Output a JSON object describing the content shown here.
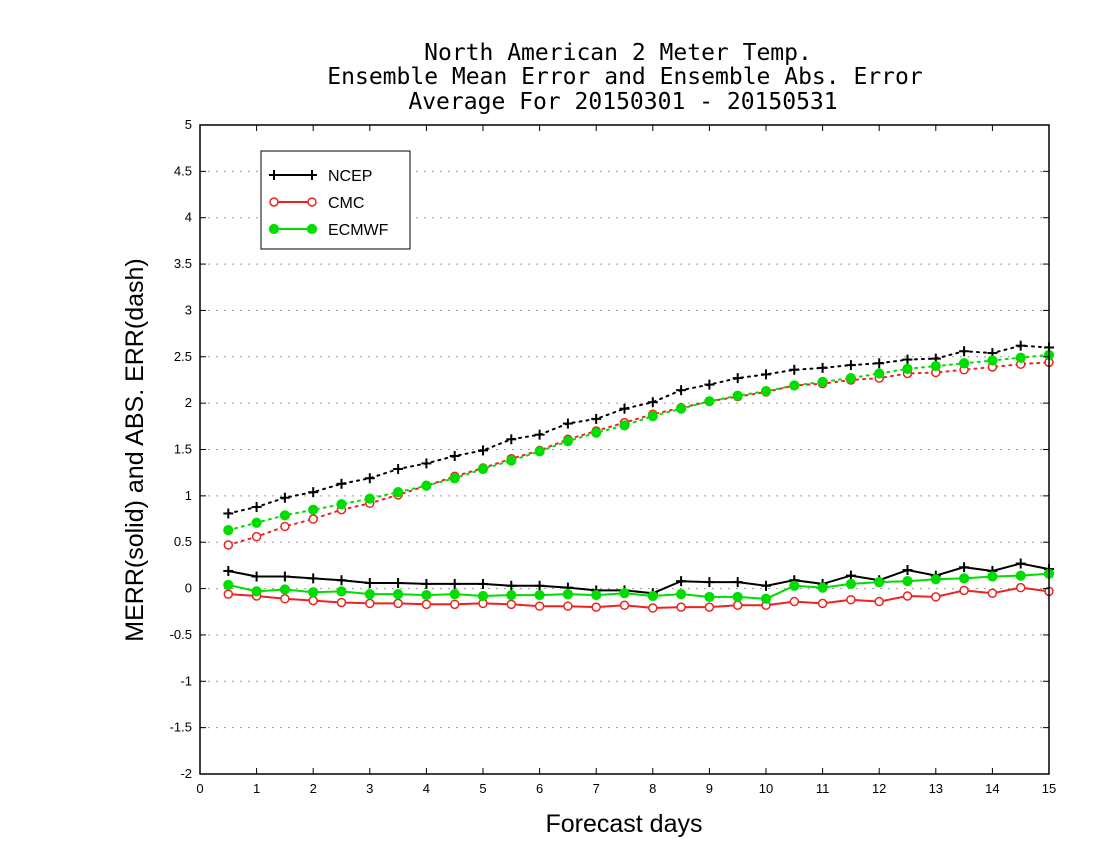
{
  "chart_data": {
    "type": "line",
    "title_lines": [
      "North American 2 Meter Temp.",
      "Ensemble Mean Error and Ensemble Abs. Error",
      "Average For 20150301 - 20150531"
    ],
    "xlabel": "Forecast days",
    "ylabel": "MERR(solid) and ABS. ERR(dash)",
    "xlim": [
      0,
      15
    ],
    "ylim": [
      -2,
      5
    ],
    "x_ticks": [
      "0",
      "1",
      "2",
      "3",
      "4",
      "5",
      "6",
      "7",
      "8",
      "9",
      "10",
      "11",
      "12",
      "13",
      "14",
      "15"
    ],
    "y_ticks": [
      "-2",
      "-1.5",
      "-1",
      "-0.5",
      "0",
      "0.5",
      "1",
      "1.5",
      "2",
      "2.5",
      "3",
      "3.5",
      "4",
      "4.5",
      "5"
    ],
    "grid": "horizontal dotted",
    "legend_position": "top-left",
    "x": [
      0.5,
      1,
      1.5,
      2,
      2.5,
      3,
      3.5,
      4,
      4.5,
      5,
      5.5,
      6,
      6.5,
      7,
      7.5,
      8,
      8.5,
      9,
      9.5,
      10,
      10.5,
      11,
      11.5,
      12,
      12.5,
      13,
      13.5,
      14,
      14.5,
      15
    ],
    "series": [
      {
        "name": "NCEP",
        "color": "#000000",
        "marker": "plus",
        "merr": [
          0.19,
          0.13,
          0.13,
          0.11,
          0.09,
          0.06,
          0.06,
          0.05,
          0.05,
          0.05,
          0.03,
          0.03,
          0.01,
          -0.02,
          -0.02,
          -0.05,
          0.08,
          0.07,
          0.07,
          0.03,
          0.09,
          0.05,
          0.14,
          0.09,
          0.2,
          0.14,
          0.23,
          0.19,
          0.27,
          0.21
        ],
        "abs_err": [
          0.81,
          0.88,
          0.98,
          1.04,
          1.13,
          1.19,
          1.29,
          1.35,
          1.43,
          1.49,
          1.61,
          1.66,
          1.78,
          1.83,
          1.94,
          2.01,
          2.14,
          2.2,
          2.27,
          2.31,
          2.36,
          2.38,
          2.41,
          2.43,
          2.47,
          2.48,
          2.56,
          2.54,
          2.62,
          2.6
        ]
      },
      {
        "name": "CMC",
        "color": "#ee2222",
        "marker": "open-circle",
        "merr": [
          -0.06,
          -0.08,
          -0.11,
          -0.13,
          -0.15,
          -0.16,
          -0.16,
          -0.17,
          -0.17,
          -0.16,
          -0.17,
          -0.19,
          -0.19,
          -0.2,
          -0.18,
          -0.21,
          -0.2,
          -0.2,
          -0.18,
          -0.18,
          -0.14,
          -0.16,
          -0.12,
          -0.14,
          -0.08,
          -0.09,
          -0.02,
          -0.05,
          0.01,
          -0.03
        ],
        "abs_err": [
          0.47,
          0.56,
          0.67,
          0.75,
          0.85,
          0.92,
          1.01,
          1.11,
          1.21,
          1.3,
          1.4,
          1.49,
          1.61,
          1.7,
          1.79,
          1.88,
          1.95,
          2.02,
          2.07,
          2.12,
          2.19,
          2.21,
          2.25,
          2.27,
          2.32,
          2.33,
          2.36,
          2.39,
          2.42,
          2.44
        ]
      },
      {
        "name": "ECMWF",
        "color": "#00dd00",
        "marker": "filled-circle",
        "merr": [
          0.04,
          -0.03,
          -0.01,
          -0.04,
          -0.03,
          -0.06,
          -0.06,
          -0.07,
          -0.06,
          -0.08,
          -0.07,
          -0.07,
          -0.06,
          -0.07,
          -0.05,
          -0.08,
          -0.06,
          -0.09,
          -0.09,
          -0.11,
          0.03,
          0.01,
          0.05,
          0.07,
          0.08,
          0.1,
          0.11,
          0.13,
          0.14,
          0.16
        ],
        "abs_err": [
          0.63,
          0.71,
          0.79,
          0.85,
          0.91,
          0.97,
          1.04,
          1.11,
          1.19,
          1.29,
          1.38,
          1.48,
          1.59,
          1.68,
          1.76,
          1.86,
          1.94,
          2.02,
          2.08,
          2.13,
          2.19,
          2.23,
          2.27,
          2.32,
          2.37,
          2.4,
          2.43,
          2.46,
          2.49,
          2.52
        ]
      }
    ]
  }
}
